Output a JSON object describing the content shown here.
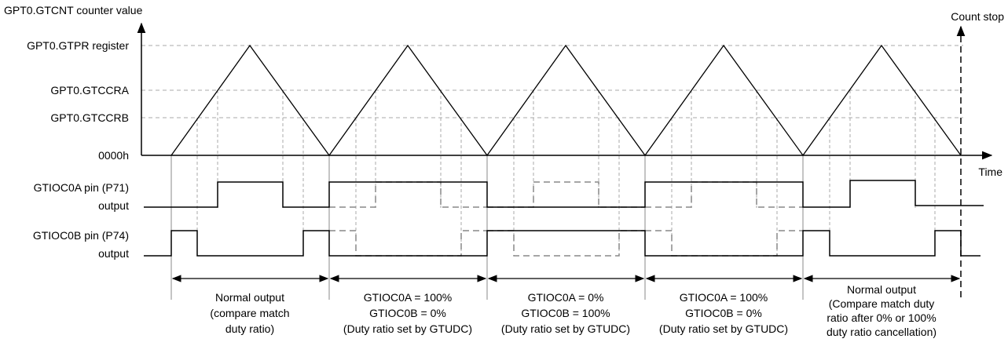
{
  "y_axis_label": "GPT0.GTCNT counter value",
  "count_stop_label": "Count stop",
  "time_label": "Time",
  "levels": {
    "gtpr": "GPT0.GTPR register",
    "gtccra": "GPT0.GTCCRA",
    "gtccrb": "GPT0.GTCCRB",
    "zero": "0000h"
  },
  "signal_a": {
    "line1": "GTIOC0A pin (P71)",
    "line2": "output"
  },
  "signal_b": {
    "line1": "GTIOC0B pin (P74)",
    "line2": "output"
  },
  "periods": [
    {
      "lines": [
        "Normal output",
        "(compare match",
        "duty ratio)"
      ]
    },
    {
      "lines": [
        "GTIOC0A = 100%",
        "GTIOC0B = 0%",
        "(Duty ratio set by GTUDC)"
      ]
    },
    {
      "lines": [
        "GTIOC0A = 0%",
        "GTIOC0B = 100%",
        "(Duty ratio set by GTUDC)"
      ]
    },
    {
      "lines": [
        "GTIOC0A = 100%",
        "GTIOC0B = 0%",
        "(Duty ratio set by GTUDC)"
      ]
    },
    {
      "lines": [
        "Normal output",
        "(Compare match duty",
        "ratio after 0% or 100%",
        "duty ratio cancellation)"
      ]
    }
  ],
  "colors": {
    "line": "#000000",
    "grid": "#999999",
    "dashed_signal": "#888888"
  }
}
